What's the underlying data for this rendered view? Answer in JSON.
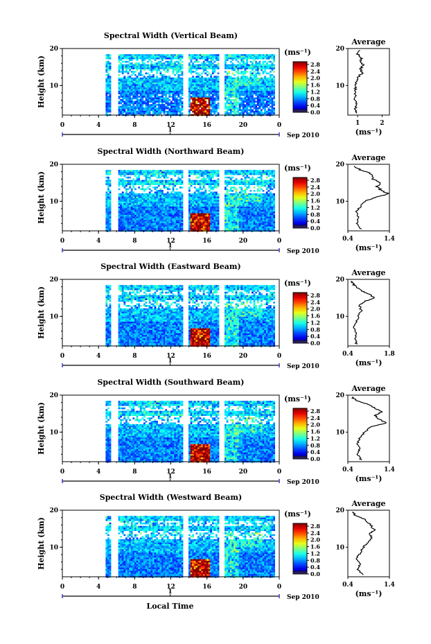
{
  "figure": {
    "xlabel": "Local Time",
    "date_label": "Sep 2010",
    "day_tick": "1",
    "x_ticks": [
      "0",
      "4",
      "8",
      "12",
      "16",
      "20",
      "0"
    ],
    "y_ticks": [
      "10",
      "20"
    ],
    "ylabel": "Height (km)",
    "colorbar_unit": "(ms⁻¹)",
    "colorbar_ticks": [
      "0.0",
      "0.4",
      "0.8",
      "1.2",
      "1.6",
      "2.0",
      "2.4",
      "2.8"
    ],
    "average_title": "Average",
    "average_xlabel": "(ms⁻¹)",
    "average_y_ticks": [
      "10",
      "20"
    ]
  },
  "chart_data": [
    {
      "type": "heatmap",
      "title": "Spectral Width (Vertical Beam)",
      "x_range": [
        0,
        24
      ],
      "y_range": [
        2,
        20
      ],
      "colorbar_range": [
        0.0,
        2.8
      ],
      "average_profile": {
        "x_ticks": [
          "1",
          "2"
        ],
        "xlim": [
          0.6,
          2.3
        ],
        "points": [
          [
            0.95,
            2.5
          ],
          [
            0.9,
            3.5
          ],
          [
            0.93,
            5
          ],
          [
            0.88,
            6.5
          ],
          [
            0.92,
            8
          ],
          [
            0.9,
            9.5
          ],
          [
            0.95,
            11
          ],
          [
            1.05,
            12.5
          ],
          [
            1.2,
            13.5
          ],
          [
            1.1,
            14.5
          ],
          [
            1.25,
            15.5
          ],
          [
            1.1,
            16.5
          ],
          [
            1.15,
            17.5
          ],
          [
            1.0,
            18.5
          ],
          [
            1.1,
            19.5
          ]
        ]
      }
    },
    {
      "type": "heatmap",
      "title": "Spectral Width (Northward Beam)",
      "x_range": [
        0,
        24
      ],
      "y_range": [
        2,
        20
      ],
      "colorbar_range": [
        0.0,
        2.8
      ],
      "average_profile": {
        "x_ticks": [
          "0.4",
          "1.4"
        ],
        "xlim": [
          0.4,
          1.4
        ],
        "points": [
          [
            0.72,
            2.5
          ],
          [
            0.62,
            4
          ],
          [
            0.66,
            5.5
          ],
          [
            0.6,
            7
          ],
          [
            0.7,
            8.5
          ],
          [
            0.82,
            10
          ],
          [
            1.05,
            11
          ],
          [
            1.38,
            12
          ],
          [
            1.2,
            13
          ],
          [
            1.1,
            14
          ],
          [
            1.2,
            15
          ],
          [
            1.0,
            16
          ],
          [
            0.95,
            17.5
          ],
          [
            0.7,
            18.5
          ],
          [
            0.55,
            19.5
          ]
        ]
      }
    },
    {
      "type": "heatmap",
      "title": "Spectral Width (Eastward Beam)",
      "x_range": [
        0,
        24
      ],
      "y_range": [
        2,
        20
      ],
      "colorbar_range": [
        0.0,
        2.8
      ],
      "average_profile": {
        "x_ticks": [
          "0.4",
          "1.8"
        ],
        "xlim": [
          0.4,
          1.8
        ],
        "points": [
          [
            0.7,
            2.5
          ],
          [
            0.62,
            4
          ],
          [
            0.68,
            5.5
          ],
          [
            0.6,
            7
          ],
          [
            0.68,
            8.5
          ],
          [
            0.75,
            10
          ],
          [
            0.85,
            11.5
          ],
          [
            0.8,
            13
          ],
          [
            0.95,
            14
          ],
          [
            1.3,
            15
          ],
          [
            1.1,
            16
          ],
          [
            0.85,
            17
          ],
          [
            0.6,
            18.5
          ],
          [
            0.5,
            19.5
          ]
        ]
      }
    },
    {
      "type": "heatmap",
      "title": "Spectral Width (Southward Beam)",
      "x_range": [
        0,
        24
      ],
      "y_range": [
        2,
        20
      ],
      "colorbar_range": [
        0.0,
        2.8
      ],
      "average_profile": {
        "x_ticks": [
          "0.4",
          "1.4"
        ],
        "xlim": [
          0.4,
          1.4
        ],
        "points": [
          [
            0.72,
            2.5
          ],
          [
            0.65,
            4
          ],
          [
            0.68,
            5.5
          ],
          [
            0.62,
            7
          ],
          [
            0.7,
            8.5
          ],
          [
            0.8,
            10
          ],
          [
            0.98,
            11.5
          ],
          [
            1.32,
            12.5
          ],
          [
            1.15,
            13.5
          ],
          [
            1.05,
            14.5
          ],
          [
            1.2,
            15.5
          ],
          [
            1.05,
            16.5
          ],
          [
            0.9,
            17.5
          ],
          [
            0.6,
            18.5
          ],
          [
            0.5,
            19.5
          ]
        ]
      }
    },
    {
      "type": "heatmap",
      "title": "Spectral Width (Westward Beam)",
      "x_range": [
        0,
        24
      ],
      "y_range": [
        2,
        20
      ],
      "colorbar_range": [
        0.0,
        2.8
      ],
      "average_profile": {
        "x_ticks": [
          "0.4",
          "1.4"
        ],
        "xlim": [
          0.4,
          1.4
        ],
        "points": [
          [
            0.75,
            2.5
          ],
          [
            0.65,
            4
          ],
          [
            0.7,
            5.5
          ],
          [
            0.62,
            7
          ],
          [
            0.7,
            8.5
          ],
          [
            0.78,
            10
          ],
          [
            0.88,
            11.5
          ],
          [
            1.0,
            12.5
          ],
          [
            0.9,
            13.5
          ],
          [
            1.05,
            14.5
          ],
          [
            0.95,
            16
          ],
          [
            0.8,
            17.5
          ],
          [
            0.6,
            18.5
          ],
          [
            0.5,
            19.5
          ]
        ]
      }
    }
  ]
}
